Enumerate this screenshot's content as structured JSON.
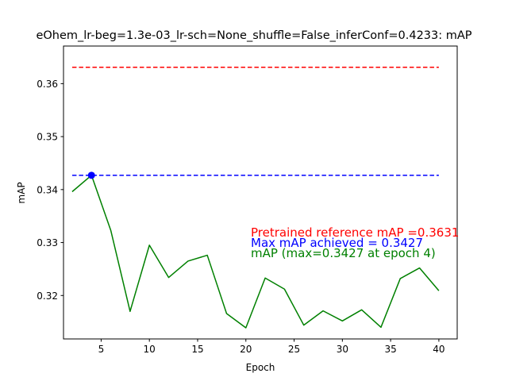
{
  "chart_data": {
    "type": "line",
    "title": "eOhem_lr-beg=1.3e-03_lr-sch=None_shuffle=False_inferConf=0.4233:  mAP",
    "xlabel": "Epoch",
    "ylabel": "mAP",
    "xlim": [
      1.1,
      41.9
    ],
    "ylim": [
      0.3118,
      0.3671
    ],
    "xticks": [
      5,
      10,
      15,
      20,
      25,
      30,
      35,
      40
    ],
    "yticks": [
      0.32,
      0.33,
      0.34,
      0.35,
      0.36
    ],
    "xtick_labels": [
      "5",
      "10",
      "15",
      "20",
      "25",
      "30",
      "35",
      "40"
    ],
    "ytick_labels": [
      "0.32",
      "0.33",
      "0.34",
      "0.35",
      "0.36"
    ],
    "series": [
      {
        "color": "#008000",
        "style": "solid",
        "x": [
          2,
          4,
          6,
          8,
          10,
          12,
          14,
          16,
          18,
          20,
          22,
          24,
          26,
          28,
          30,
          32,
          34,
          36,
          38,
          40
        ],
        "values": [
          0.3396,
          0.3427,
          0.3323,
          0.317,
          0.3295,
          0.3234,
          0.3265,
          0.3276,
          0.3166,
          0.3139,
          0.3233,
          0.3212,
          0.3144,
          0.3171,
          0.3152,
          0.3173,
          0.314,
          0.3232,
          0.3252,
          0.3209
        ]
      }
    ],
    "reference_lines": [
      {
        "y": 0.3631,
        "x_range": [
          2,
          40
        ],
        "color": "#ff0000",
        "style": "dashed"
      },
      {
        "y": 0.3427,
        "x_range": [
          2,
          40
        ],
        "color": "#0000ff",
        "style": "dashed"
      }
    ],
    "marker": {
      "x": 4,
      "y": 0.3427,
      "color": "#0000ff"
    },
    "annotations": [
      {
        "text": "Pretrained reference mAP =0.3631",
        "color": "#ff0000"
      },
      {
        "text": "Max mAP achieved = 0.3427",
        "color": "#0000ff"
      },
      {
        "text": "mAP (max=0.3427 at epoch 4)",
        "color": "#008000"
      }
    ],
    "grid": false
  }
}
